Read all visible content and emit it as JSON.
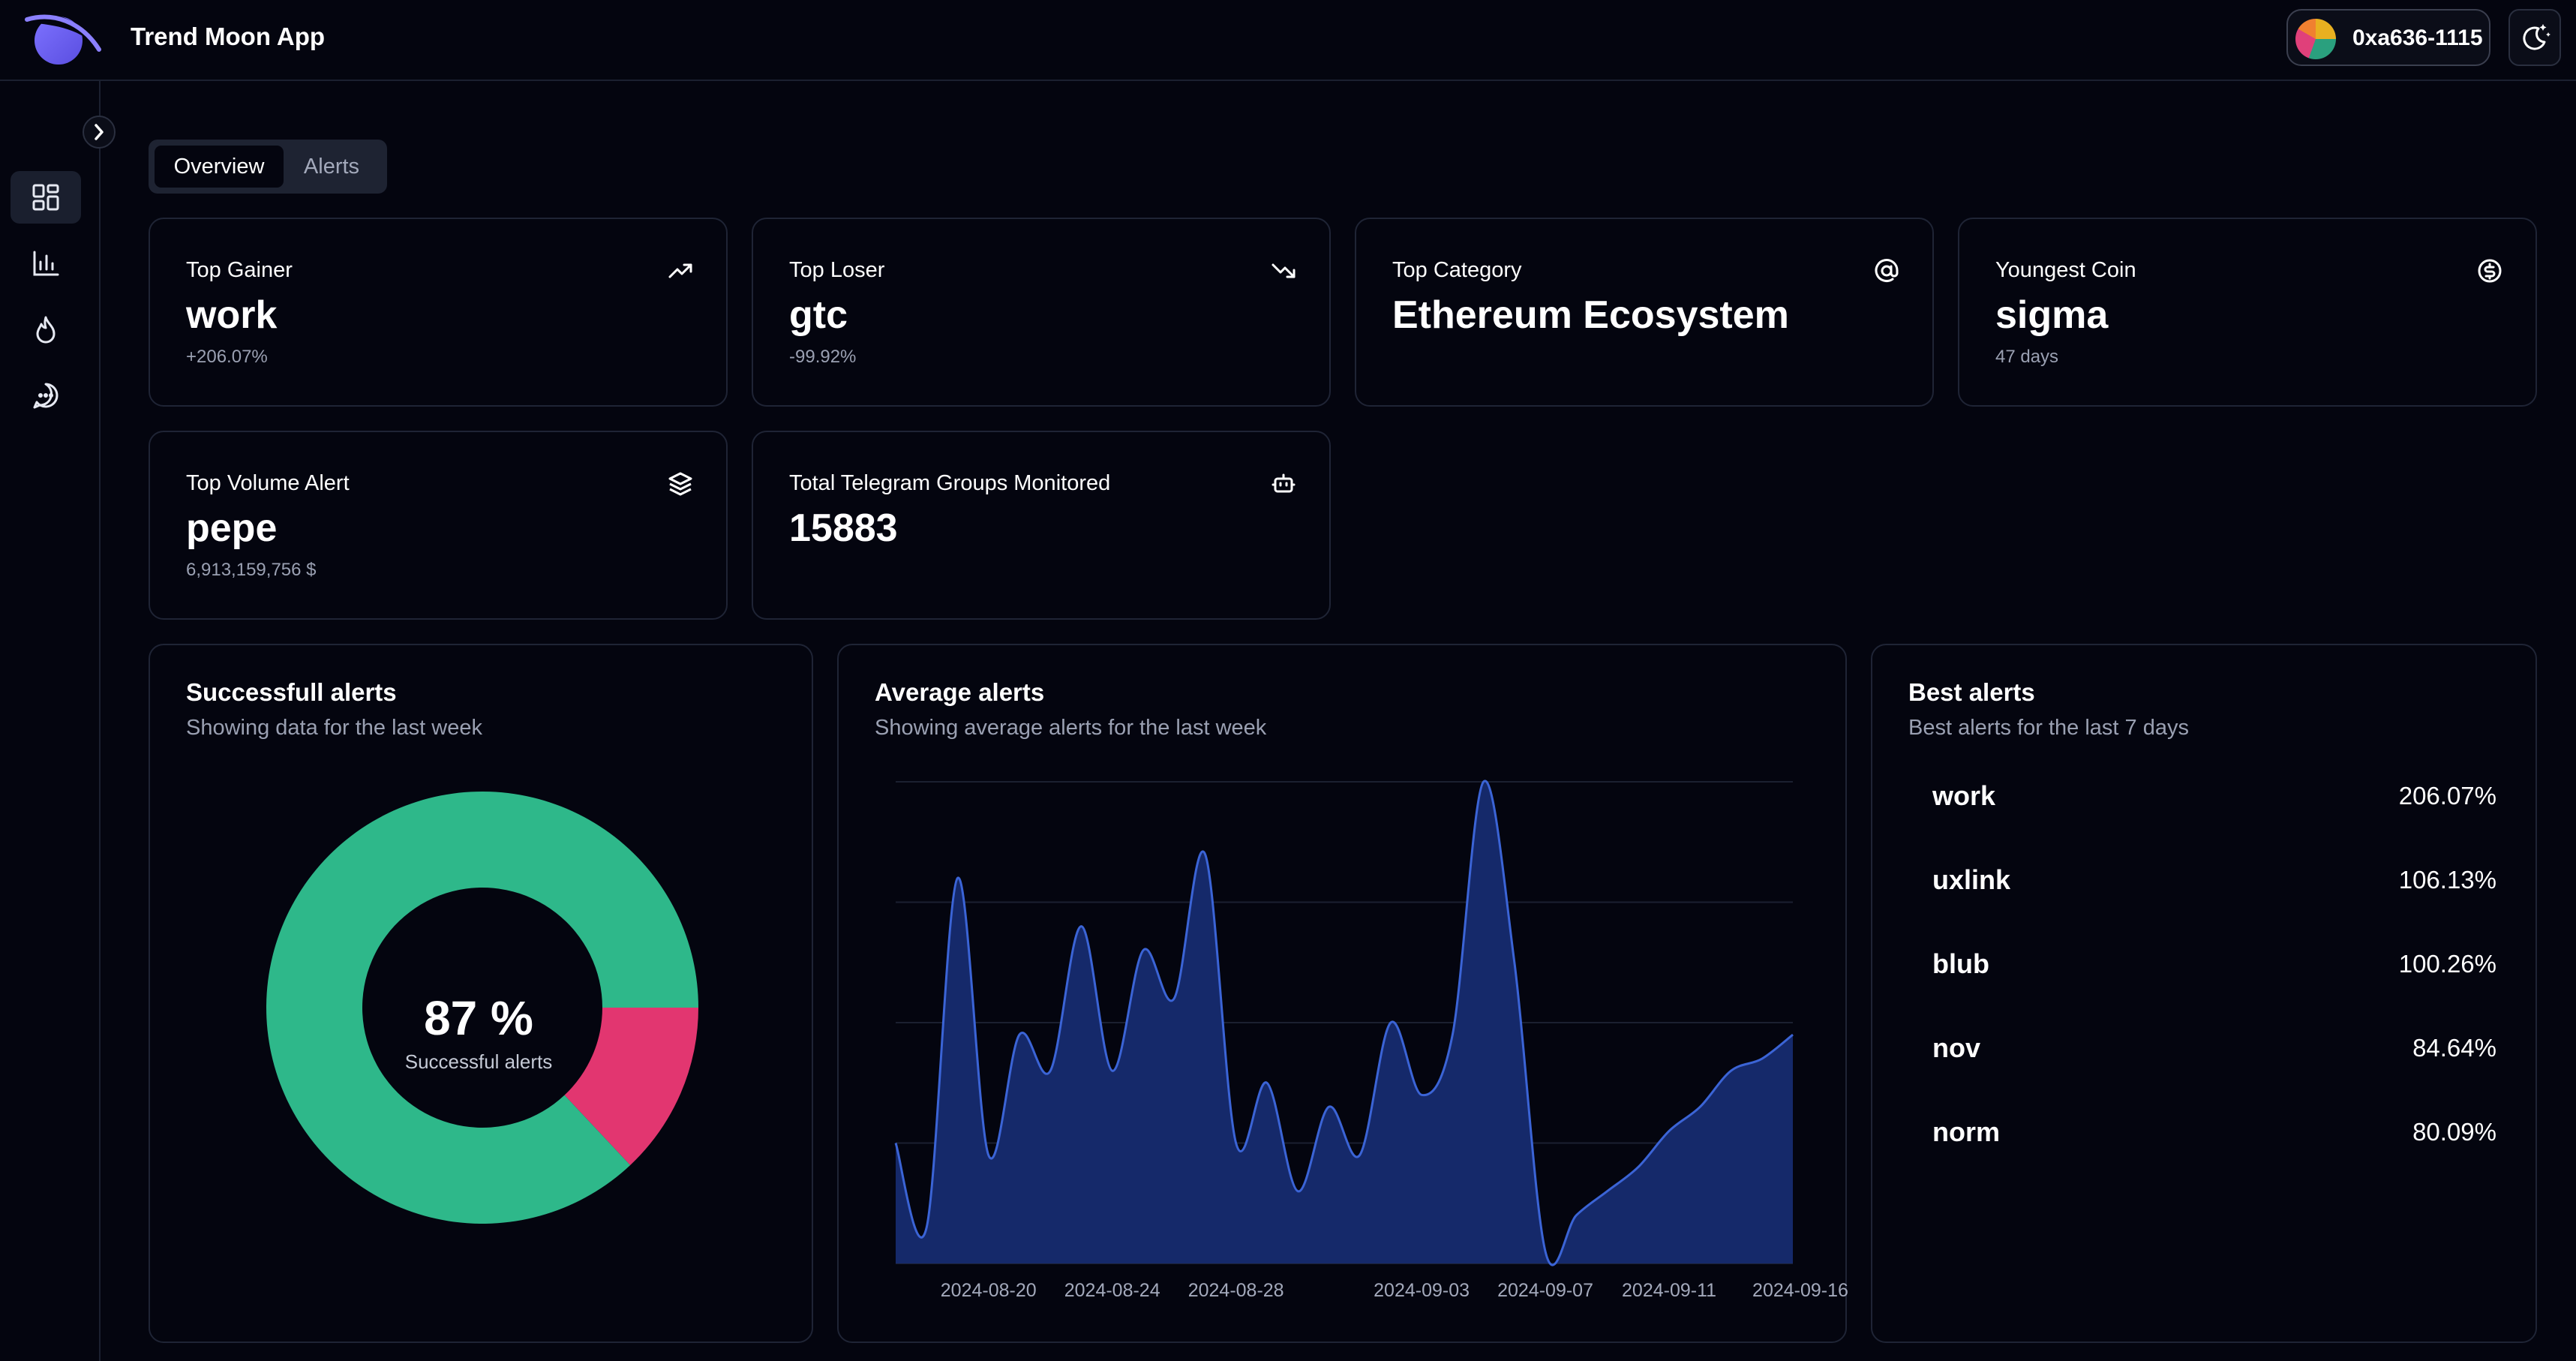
{
  "app": {
    "title": "Trend Moon App"
  },
  "header": {
    "wallet_address": "0xa636-1115"
  },
  "icons": {
    "logo": "planet-logo-icon",
    "theme": "moon-stars-icon",
    "collapse": "chevron-right-icon",
    "nav": [
      "dashboard-grid-icon",
      "bar-chart-icon",
      "flame-icon",
      "message-circle-icon"
    ]
  },
  "tabs": [
    {
      "label": "Overview",
      "active": true
    },
    {
      "label": "Alerts",
      "active": false
    }
  ],
  "stats": {
    "top_gainer": {
      "label": "Top Gainer",
      "value": "work",
      "sub": "+206.07%",
      "icon": "trending-up-icon"
    },
    "top_loser": {
      "label": "Top Loser",
      "value": "gtc",
      "sub": "-99.92%",
      "icon": "trending-down-icon"
    },
    "top_category": {
      "label": "Top Category",
      "value": "Ethereum Ecosystem",
      "icon": "at-sign-icon"
    },
    "youngest_coin": {
      "label": "Youngest Coin",
      "value": "sigma",
      "sub": "47 days",
      "icon": "coin-icon"
    },
    "top_volume": {
      "label": "Top Volume Alert",
      "value": "pepe",
      "sub": "6,913,159,756 $",
      "icon": "layers-icon"
    },
    "telegram_groups": {
      "label": "Total Telegram Groups Monitored",
      "value": "15883",
      "icon": "bot-icon"
    }
  },
  "successful_alerts": {
    "title": "Successfull alerts",
    "subtitle": "Showing data for the last week",
    "center_value": "87 %",
    "center_label": "Successful alerts",
    "success_share": 0.87,
    "colors": {
      "success": "#2eb88a",
      "fail": "#e23670"
    }
  },
  "average_alerts": {
    "title": "Average alerts",
    "subtitle": "Showing average alerts for the last week"
  },
  "best_alerts": {
    "title": "Best alerts",
    "subtitle": "Best alerts for the last 7 days",
    "items": [
      {
        "name": "work",
        "value": "206.07%"
      },
      {
        "name": "uxlink",
        "value": "106.13%"
      },
      {
        "name": "blub",
        "value": "100.26%"
      },
      {
        "name": "nov",
        "value": "84.64%"
      },
      {
        "name": "norm",
        "value": "80.09%"
      }
    ]
  },
  "chart_data": {
    "type": "area",
    "x": [
      "2024-08-17",
      "2024-08-18",
      "2024-08-19",
      "2024-08-20",
      "2024-08-21",
      "2024-08-22",
      "2024-08-23",
      "2024-08-24",
      "2024-08-25",
      "2024-08-26",
      "2024-08-27",
      "2024-08-28",
      "2024-08-29",
      "2024-08-30",
      "2024-08-31",
      "2024-09-01",
      "2024-09-02",
      "2024-09-03",
      "2024-09-04",
      "2024-09-05",
      "2024-09-06",
      "2024-09-07",
      "2024-09-08",
      "2024-09-09",
      "2024-09-10",
      "2024-09-11",
      "2024-09-12",
      "2024-09-13",
      "2024-09-14",
      "2024-09-15"
    ],
    "y": [
      1.0,
      0.3,
      3.2,
      0.9,
      1.9,
      1.6,
      2.8,
      1.6,
      2.6,
      2.2,
      3.4,
      1.0,
      1.5,
      0.6,
      1.3,
      0.9,
      2.0,
      1.4,
      1.9,
      4.0,
      2.5,
      0.1,
      0.4,
      0.6,
      0.8,
      1.1,
      1.3,
      1.6,
      1.7,
      1.9
    ],
    "xticks": [
      "2024-08-20",
      "2024-08-24",
      "2024-08-28",
      "2024-09-03",
      "2024-09-07",
      "2024-09-11",
      "2024-09-16"
    ],
    "ylim": [
      0,
      4
    ],
    "grid": true,
    "colors": {
      "fill": "#15296a",
      "line": "#3b64d6"
    }
  }
}
